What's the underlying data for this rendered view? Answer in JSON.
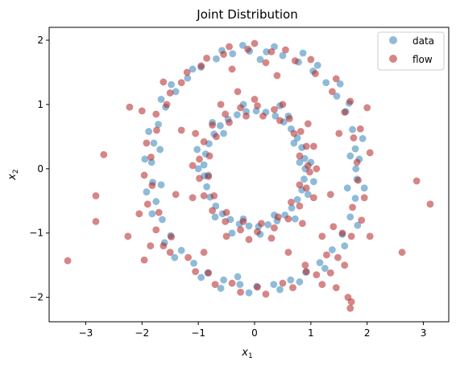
{
  "chart_data": {
    "type": "scatter",
    "title": "Joint Distribution",
    "xlabel": "x",
    "xlabel_sub": "1",
    "ylabel": "x",
    "ylabel_sub": "2",
    "xlim": [
      -3.65,
      3.45
    ],
    "ylim": [
      -2.38,
      2.2
    ],
    "xticks": [
      -3,
      -2,
      -1,
      0,
      1,
      2,
      3
    ],
    "yticks": [
      -2,
      -1,
      0,
      1,
      2
    ],
    "xtick_labels": [
      "−3",
      "−2",
      "−1",
      "0",
      "1",
      "2",
      "3"
    ],
    "ytick_labels": [
      "−2",
      "−1",
      "0",
      "1",
      "2"
    ],
    "grid": false,
    "legend_position": "top-right",
    "series": [
      {
        "name": "data",
        "color": "#1f77b4",
        "alpha": 0.5,
        "points": [
          [
            1.8,
            0.0
          ],
          [
            1.79,
            0.31
          ],
          [
            1.74,
            0.61
          ],
          [
            1.62,
            0.89
          ],
          [
            1.46,
            1.13
          ],
          [
            1.27,
            1.34
          ],
          [
            1.04,
            1.52
          ],
          [
            0.78,
            1.66
          ],
          [
            0.5,
            1.76
          ],
          [
            0.21,
            1.82
          ],
          [
            -0.09,
            1.83
          ],
          [
            -0.39,
            1.79
          ],
          [
            -0.68,
            1.71
          ],
          [
            -0.95,
            1.58
          ],
          [
            -1.19,
            1.41
          ],
          [
            -1.4,
            1.2
          ],
          [
            -1.58,
            0.96
          ],
          [
            -1.71,
            0.69
          ],
          [
            -1.79,
            0.4
          ],
          [
            -1.83,
            0.1
          ],
          [
            -1.81,
            -0.21
          ],
          [
            -1.75,
            -0.51
          ],
          [
            -1.64,
            -0.79
          ],
          [
            -1.49,
            -1.04
          ],
          [
            -1.3,
            -1.27
          ],
          [
            -1.08,
            -1.47
          ],
          [
            -0.83,
            -1.62
          ],
          [
            -0.55,
            -1.73
          ],
          [
            -0.26,
            -1.8
          ],
          [
            0.04,
            -1.83
          ],
          [
            0.34,
            -1.8
          ],
          [
            0.64,
            -1.73
          ],
          [
            0.91,
            -1.61
          ],
          [
            1.16,
            -1.46
          ],
          [
            1.38,
            -1.26
          ],
          [
            1.56,
            -1.02
          ],
          [
            1.7,
            -0.75
          ],
          [
            1.79,
            -0.46
          ],
          [
            1.82,
            -0.16
          ],
          [
            1.86,
            0.15
          ],
          [
            1.92,
            0.47
          ],
          [
            1.68,
            1.02
          ],
          [
            1.52,
            1.32
          ],
          [
            1.12,
            1.61
          ],
          [
            0.86,
            1.8
          ],
          [
            0.35,
            1.9
          ],
          [
            -0.21,
            1.92
          ],
          [
            -0.58,
            1.84
          ],
          [
            -1.1,
            1.55
          ],
          [
            -1.48,
            1.31
          ],
          [
            -1.66,
            1.08
          ],
          [
            -1.88,
            0.58
          ],
          [
            -1.95,
            0.15
          ],
          [
            -1.92,
            -0.36
          ],
          [
            -1.82,
            -0.7
          ],
          [
            -1.6,
            -1.15
          ],
          [
            -1.42,
            -1.38
          ],
          [
            -0.95,
            -1.69
          ],
          [
            -0.6,
            -1.86
          ],
          [
            -0.1,
            -1.93
          ],
          [
            0.45,
            -1.88
          ],
          [
            0.8,
            -1.76
          ],
          [
            1.25,
            -1.55
          ],
          [
            1.6,
            -1.2
          ],
          [
            1.83,
            -0.88
          ],
          [
            1.95,
            -0.3
          ],
          [
            1.7,
            0.2
          ],
          [
            1.65,
            -0.3
          ],
          [
            -1.68,
            0.3
          ],
          [
            -1.66,
            -0.25
          ],
          [
            0.1,
            1.7
          ],
          [
            -0.3,
            -1.68
          ],
          [
            0.9,
            0.0
          ],
          [
            0.89,
            0.16
          ],
          [
            0.84,
            0.33
          ],
          [
            0.76,
            0.48
          ],
          [
            0.65,
            0.62
          ],
          [
            0.52,
            0.73
          ],
          [
            0.37,
            0.82
          ],
          [
            0.2,
            0.88
          ],
          [
            0.03,
            0.9
          ],
          [
            -0.15,
            0.89
          ],
          [
            -0.31,
            0.84
          ],
          [
            -0.47,
            0.77
          ],
          [
            -0.61,
            0.67
          ],
          [
            -0.72,
            0.54
          ],
          [
            -0.81,
            0.39
          ],
          [
            -0.87,
            0.23
          ],
          [
            -0.9,
            0.06
          ],
          [
            -0.89,
            -0.11
          ],
          [
            -0.85,
            -0.28
          ],
          [
            -0.79,
            -0.44
          ],
          [
            -0.69,
            -0.58
          ],
          [
            -0.57,
            -0.7
          ],
          [
            -0.43,
            -0.79
          ],
          [
            -0.27,
            -0.86
          ],
          [
            -0.1,
            -0.89
          ],
          [
            0.07,
            -0.9
          ],
          [
            0.24,
            -0.87
          ],
          [
            0.4,
            -0.81
          ],
          [
            0.54,
            -0.72
          ],
          [
            0.66,
            -0.61
          ],
          [
            0.76,
            -0.48
          ],
          [
            0.84,
            -0.33
          ],
          [
            0.88,
            -0.16
          ],
          [
            1.0,
            0.1
          ],
          [
            0.95,
            -0.4
          ],
          [
            0.6,
            0.82
          ],
          [
            -0.2,
            1.0
          ],
          [
            -0.75,
            0.72
          ],
          [
            -1.0,
            0.0
          ],
          [
            -0.7,
            -0.75
          ],
          [
            0.1,
            -1.02
          ],
          [
            0.72,
            -0.78
          ],
          [
            0.8,
            0.1
          ],
          [
            0.7,
            0.4
          ],
          [
            -0.82,
            -0.1
          ],
          [
            -0.55,
            0.55
          ],
          [
            0.35,
            -0.72
          ],
          [
            -0.2,
            -0.78
          ],
          [
            0.45,
            0.98
          ],
          [
            1.05,
            -0.2
          ],
          [
            -1.02,
            0.3
          ],
          [
            -0.4,
            -1.0
          ]
        ]
      },
      {
        "name": "flow",
        "color": "#b22222",
        "alpha": 0.55,
        "points": [
          [
            1.82,
            0.1
          ],
          [
            1.76,
            0.48
          ],
          [
            1.6,
            0.88
          ],
          [
            1.38,
            1.2
          ],
          [
            1.08,
            1.48
          ],
          [
            0.72,
            1.68
          ],
          [
            0.3,
            1.82
          ],
          [
            -0.12,
            1.86
          ],
          [
            -0.55,
            1.78
          ],
          [
            -0.95,
            1.6
          ],
          [
            -1.3,
            1.34
          ],
          [
            -1.56,
            1.0
          ],
          [
            -1.74,
            0.6
          ],
          [
            -1.84,
            0.18
          ],
          [
            -1.82,
            -0.26
          ],
          [
            -1.7,
            -0.68
          ],
          [
            -1.48,
            -1.06
          ],
          [
            -1.18,
            -1.38
          ],
          [
            -0.82,
            -1.62
          ],
          [
            -0.4,
            -1.78
          ],
          [
            0.05,
            -1.84
          ],
          [
            0.5,
            -1.78
          ],
          [
            0.92,
            -1.6
          ],
          [
            1.28,
            -1.34
          ],
          [
            1.56,
            -1.0
          ],
          [
            1.74,
            -0.6
          ],
          [
            1.84,
            -0.18
          ],
          [
            1.88,
            0.62
          ],
          [
            1.7,
            1.05
          ],
          [
            1.45,
            1.4
          ],
          [
            1.0,
            1.7
          ],
          [
            0.55,
            1.85
          ],
          [
            0.0,
            1.95
          ],
          [
            -0.45,
            1.9
          ],
          [
            -0.85,
            1.72
          ],
          [
            -1.2,
            1.5
          ],
          [
            -1.5,
            1.18
          ],
          [
            -1.75,
            0.85
          ],
          [
            -1.92,
            0.4
          ],
          [
            -1.96,
            -0.1
          ],
          [
            -1.9,
            -0.55
          ],
          [
            -1.75,
            -0.95
          ],
          [
            -1.5,
            -1.3
          ],
          [
            -1.05,
            -1.6
          ],
          [
            -0.7,
            -1.8
          ],
          [
            -0.25,
            -1.92
          ],
          [
            0.2,
            -1.95
          ],
          [
            0.68,
            -1.85
          ],
          [
            1.1,
            -1.65
          ],
          [
            1.48,
            -1.38
          ],
          [
            1.72,
            -1.05
          ],
          [
            1.95,
            -0.45
          ],
          [
            2.05,
            0.25
          ],
          [
            1.9,
            -0.8
          ],
          [
            -1.62,
            -1.2
          ],
          [
            -2.0,
            0.9
          ],
          [
            -1.62,
            1.35
          ],
          [
            0.95,
            0.05
          ],
          [
            0.92,
            0.35
          ],
          [
            0.82,
            0.58
          ],
          [
            0.62,
            0.78
          ],
          [
            0.35,
            0.92
          ],
          [
            0.05,
            0.98
          ],
          [
            -0.25,
            0.95
          ],
          [
            -0.52,
            0.85
          ],
          [
            -0.75,
            0.68
          ],
          [
            -0.9,
            0.42
          ],
          [
            -0.98,
            0.15
          ],
          [
            -0.98,
            -0.15
          ],
          [
            -0.9,
            -0.42
          ],
          [
            -0.75,
            -0.65
          ],
          [
            -0.52,
            -0.82
          ],
          [
            -0.25,
            -0.95
          ],
          [
            0.05,
            -0.98
          ],
          [
            0.35,
            -0.92
          ],
          [
            0.6,
            -0.78
          ],
          [
            0.8,
            -0.58
          ],
          [
            0.92,
            -0.3
          ],
          [
            0.98,
            -0.05
          ],
          [
            0.8,
            0.2
          ],
          [
            0.7,
            0.55
          ],
          [
            0.45,
            0.75
          ],
          [
            0.15,
            0.82
          ],
          [
            -0.15,
            0.82
          ],
          [
            -0.45,
            0.72
          ],
          [
            -0.68,
            0.5
          ],
          [
            -0.8,
            0.2
          ],
          [
            -0.82,
            -0.12
          ],
          [
            -0.72,
            -0.42
          ],
          [
            -0.5,
            -0.68
          ],
          [
            -0.2,
            -0.82
          ],
          [
            0.12,
            -0.85
          ],
          [
            0.42,
            -0.75
          ],
          [
            0.65,
            -0.52
          ],
          [
            0.8,
            -0.25
          ],
          [
            1.05,
            0.35
          ],
          [
            1.05,
            -0.45
          ],
          [
            0.5,
            1.0
          ],
          [
            -0.6,
            1.0
          ],
          [
            -1.05,
            0.55
          ],
          [
            -1.1,
            -0.45
          ],
          [
            -0.5,
            -1.05
          ],
          [
            0.3,
            -1.08
          ],
          [
            0.85,
            -0.85
          ],
          [
            0.95,
            0.7
          ],
          [
            1.1,
            0.0
          ],
          [
            -1.1,
            0.05
          ],
          [
            0.0,
            1.08
          ],
          [
            -0.1,
            -1.1
          ],
          [
            -3.32,
            -1.43
          ],
          [
            -2.82,
            -0.42
          ],
          [
            -2.82,
            -0.82
          ],
          [
            -2.68,
            0.22
          ],
          [
            -2.22,
            0.96
          ],
          [
            -2.25,
            -1.05
          ],
          [
            -1.96,
            -1.42
          ],
          [
            2.88,
            -0.19
          ],
          [
            3.12,
            -0.55
          ],
          [
            2.62,
            -1.3
          ],
          [
            1.72,
            -2.07
          ],
          [
            1.7,
            -2.17
          ],
          [
            1.66,
            -2.0
          ],
          [
            1.4,
            -0.9
          ],
          [
            1.35,
            -0.4
          ],
          [
            1.5,
            0.55
          ],
          [
            -1.4,
            -0.4
          ],
          [
            -1.3,
            0.6
          ],
          [
            0.6,
            -1.3
          ],
          [
            0.9,
            -1.5
          ],
          [
            -0.9,
            -1.3
          ],
          [
            1.2,
            -1.05
          ],
          [
            2.05,
            -1.05
          ],
          [
            2.0,
            0.95
          ],
          [
            -2.05,
            -0.7
          ],
          [
            -1.85,
            -1.2
          ],
          [
            1.6,
            -1.5
          ],
          [
            1.35,
            -1.62
          ],
          [
            0.4,
            1.45
          ],
          [
            -0.3,
            1.2
          ],
          [
            1.2,
            -1.8
          ],
          [
            1.45,
            -1.85
          ],
          [
            0.2,
            1.65
          ],
          [
            -0.4,
            1.55
          ]
        ]
      }
    ]
  }
}
